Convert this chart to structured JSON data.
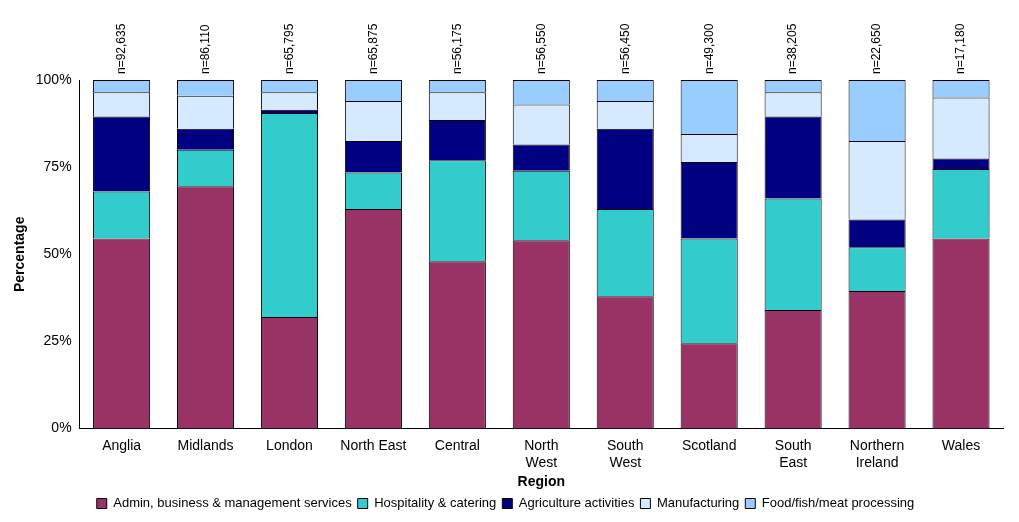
{
  "chart_data": {
    "type": "bar",
    "stacked": true,
    "xlabel": "Region",
    "ylabel": "Percentage",
    "categories": [
      "Anglia",
      "Midlands",
      "London",
      "North East",
      "Central",
      "North\nWest",
      "South\nWest",
      "Scotland",
      "South\nEast",
      "Northern\nIreland",
      "Wales"
    ],
    "series": [
      {
        "name": "Admin, business & management services",
        "color": "#993366",
        "values": [
          54.5,
          69.5,
          32,
          63,
          48,
          54,
          38,
          24.5,
          34,
          39.5,
          54.5
        ]
      },
      {
        "name": "Hospitality & catering",
        "color": "#33cccc",
        "values": [
          13.5,
          10.5,
          58.5,
          10.5,
          29,
          20,
          25,
          30,
          32,
          12.5,
          20
        ]
      },
      {
        "name": "Agriculture activities",
        "color": "#000080",
        "values": [
          21.5,
          6,
          1,
          9,
          11.5,
          7.5,
          23,
          22,
          23.5,
          8,
          3
        ]
      },
      {
        "name": "Manufacturing",
        "color": "#d6eaff",
        "values": [
          7,
          9.5,
          5,
          11.5,
          8,
          11.5,
          8,
          8,
          7,
          22.5,
          17.5
        ]
      },
      {
        "name": "Food/fish/meat processing",
        "color": "#99ccff",
        "values": [
          3.5,
          4.5,
          3.5,
          6,
          3.5,
          7,
          6,
          15.5,
          3.5,
          17.5,
          5
        ]
      }
    ],
    "ylim": [
      0,
      100
    ],
    "yticks": [
      {
        "value": 0,
        "label": "0%"
      },
      {
        "value": 25,
        "label": "25%"
      },
      {
        "value": 50,
        "label": "50%"
      },
      {
        "value": 75,
        "label": "75%"
      },
      {
        "value": 100,
        "label": "100%"
      }
    ],
    "grid": false,
    "legend": "bottom",
    "annotations": [
      {
        "text": "n=92,635",
        "x": "Anglia",
        "y": 100
      },
      {
        "text": "n=86,110",
        "x": "Midlands",
        "y": 100
      },
      {
        "text": "n=65,795",
        "x": "London",
        "y": 100
      },
      {
        "text": "n=65,875",
        "x": "North East",
        "y": 100
      },
      {
        "text": "n=56,175",
        "x": "Central",
        "y": 100
      },
      {
        "text": "n=56,550",
        "x": "North\nWest",
        "y": 100
      },
      {
        "text": "n=56,450",
        "x": "South\nWest",
        "y": 100
      },
      {
        "text": "n=49,300",
        "x": "Scotland",
        "y": 100
      },
      {
        "text": "n=38,205",
        "x": "South\nEast",
        "y": 100
      },
      {
        "text": "n=22,650",
        "x": "Northern\nIreland",
        "y": 100
      },
      {
        "text": "n=17,180",
        "x": "Wales",
        "y": 100
      }
    ]
  }
}
